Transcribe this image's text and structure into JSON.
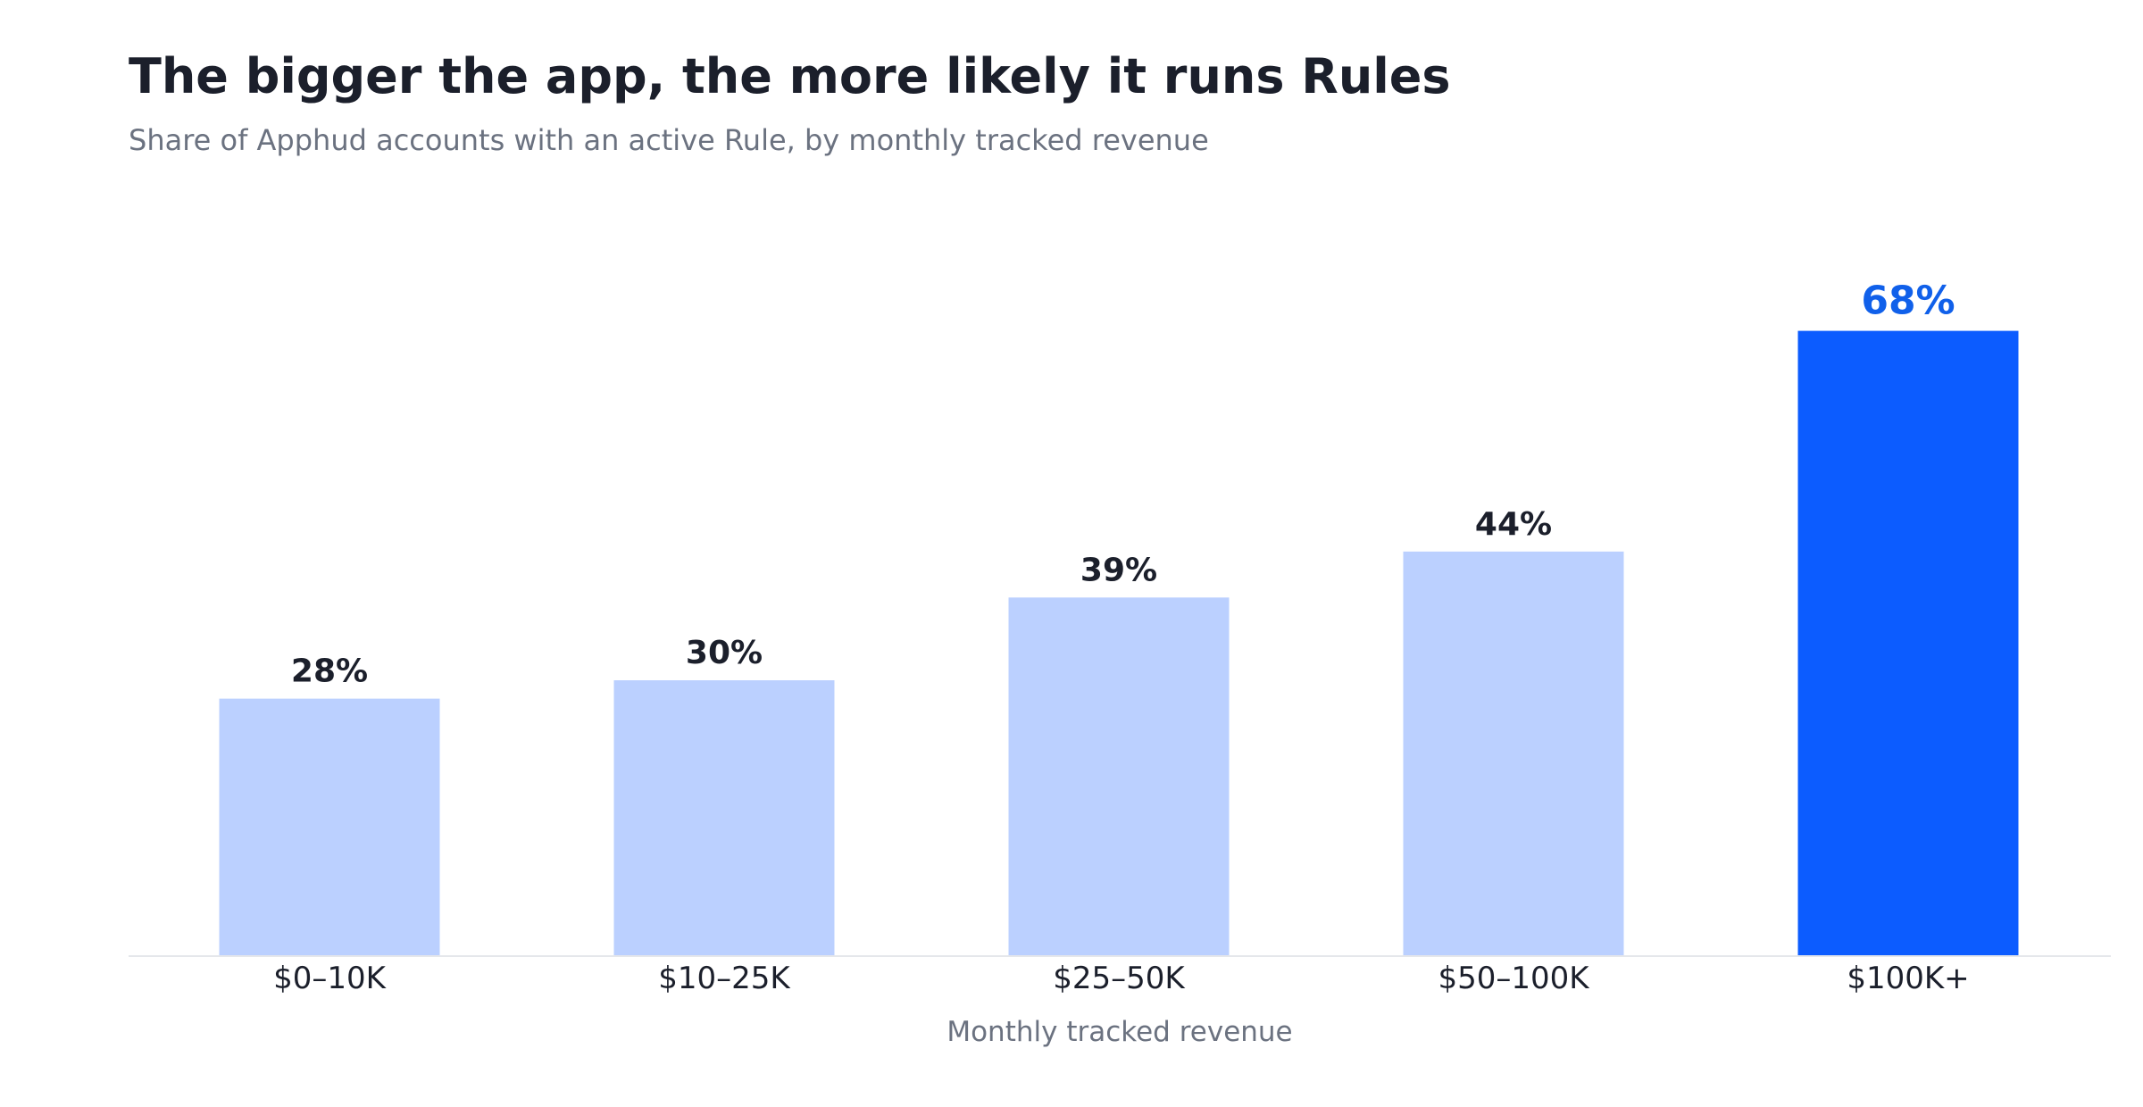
{
  "chart_data": {
    "type": "bar",
    "title": "The bigger the app, the more likely it runs Rules",
    "subtitle": "Share of Apphud accounts with an active Rule, by monthly tracked revenue",
    "xlabel": "Monthly tracked revenue",
    "ylabel": "",
    "categories": [
      "$0–10K",
      "$10–25K",
      "$25–50K",
      "$50–100K",
      "$100K+"
    ],
    "values": [
      28,
      30,
      39,
      44,
      68
    ],
    "data_labels": [
      "28%",
      "30%",
      "39%",
      "44%",
      "68%"
    ],
    "ylim": [
      0,
      75
    ],
    "grid": false,
    "legend": "none",
    "highlight_index": 4,
    "colors": {
      "bar": "#bbd0ff",
      "highlight_bar": "#0c5cff",
      "label": "#1b1f2b",
      "highlight_label": "#1060ea",
      "axis_line": "#e5e7eb"
    }
  }
}
